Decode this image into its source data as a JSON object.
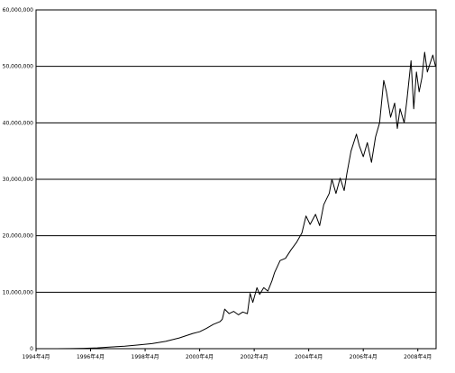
{
  "chart_data": {
    "type": "line",
    "title": "",
    "xlabel": "",
    "ylabel": "",
    "ylim": [
      0,
      60000000
    ],
    "xlim": [
      1994.25,
      2008.92
    ],
    "grid": "horizontal",
    "legend": "none",
    "y_ticks": [
      {
        "value": 0,
        "label": "0"
      },
      {
        "value": 10000000,
        "label": "10,000,000"
      },
      {
        "value": 20000000,
        "label": "20,000,000"
      },
      {
        "value": 30000000,
        "label": "30,000,000"
      },
      {
        "value": 40000000,
        "label": "40,000,000"
      },
      {
        "value": 50000000,
        "label": "50,000,000"
      },
      {
        "value": 60000000,
        "label": "60,000,000"
      }
    ],
    "x_ticks": [
      {
        "value": 1994.25,
        "label": "1994年4月"
      },
      {
        "value": 1996.25,
        "label": "1996年4月"
      },
      {
        "value": 1998.25,
        "label": "1998年4月"
      },
      {
        "value": 2000.25,
        "label": "2000年4月"
      },
      {
        "value": 2002.25,
        "label": "2002年4月"
      },
      {
        "value": 2004.25,
        "label": "2004年4月"
      },
      {
        "value": 2006.25,
        "label": "2006年4月"
      },
      {
        "value": 2008.25,
        "label": "2008年4月"
      }
    ],
    "series": [
      {
        "color": "#000000",
        "x": [
          1995.0,
          1995.5,
          1996.0,
          1996.5,
          1997.0,
          1997.5,
          1998.0,
          1998.5,
          1999.0,
          1999.5,
          2000.0,
          2000.25,
          2000.5,
          2000.75,
          2001.0,
          2001.08,
          2001.17,
          2001.33,
          2001.5,
          2001.67,
          2001.83,
          2002.0,
          2002.1,
          2002.2,
          2002.35,
          2002.45,
          2002.6,
          2002.75,
          2002.9,
          2003.0,
          2003.2,
          2003.4,
          2003.6,
          2003.8,
          2004.0,
          2004.15,
          2004.3,
          2004.5,
          2004.65,
          2004.8,
          2005.0,
          2005.1,
          2005.25,
          2005.4,
          2005.55,
          2005.65,
          2005.8,
          2006.0,
          2006.1,
          2006.25,
          2006.4,
          2006.55,
          2006.7,
          2006.85,
          2007.0,
          2007.1,
          2007.25,
          2007.4,
          2007.5,
          2007.6,
          2007.75,
          2007.85,
          2008.0,
          2008.1,
          2008.2,
          2008.3,
          2008.4,
          2008.5,
          2008.6,
          2008.7,
          2008.8,
          2008.9
        ],
        "y": [
          0,
          20000,
          60000,
          150000,
          300000,
          450000,
          650000,
          900000,
          1300000,
          1900000,
          2700000,
          3000000,
          3600000,
          4300000,
          4800000,
          5200000,
          7000000,
          6200000,
          6600000,
          6000000,
          6500000,
          6200000,
          9800000,
          8200000,
          10800000,
          9600000,
          10800000,
          10200000,
          12000000,
          13500000,
          15600000,
          16000000,
          17500000,
          18800000,
          20500000,
          23500000,
          22000000,
          23800000,
          21800000,
          25500000,
          27500000,
          30000000,
          27500000,
          30200000,
          28000000,
          31000000,
          35000000,
          38000000,
          36000000,
          34000000,
          36500000,
          33000000,
          37500000,
          40000000,
          47500000,
          45500000,
          41000000,
          43500000,
          39000000,
          42500000,
          40000000,
          44000000,
          51000000,
          42500000,
          49000000,
          45500000,
          48000000,
          52500000,
          49000000,
          50500000,
          52000000,
          50000000
        ]
      }
    ],
    "annotations": []
  }
}
